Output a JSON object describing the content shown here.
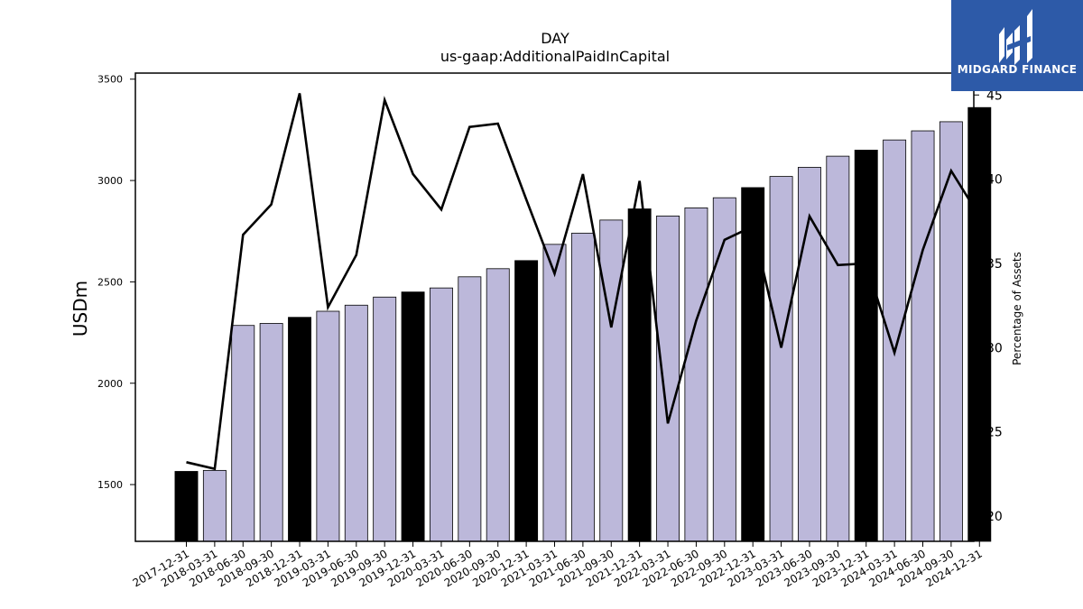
{
  "chart_data": {
    "type": "bar",
    "title": "DAY",
    "subtitle": "us-gaap:AdditionalPaidInCapital",
    "ylabel": "USDm",
    "y2label": "Percentage of Assets",
    "ylim": [
      1220,
      3530
    ],
    "y2lim": [
      18.5,
      46.3
    ],
    "yticks": [
      1500,
      2000,
      2500,
      3000,
      3500
    ],
    "y2ticks": [
      20,
      25,
      30,
      35,
      40,
      45
    ],
    "categories": [
      "2017-12-31",
      "2018-03-31",
      "2018-06-30",
      "2018-09-30",
      "2018-12-31",
      "2019-03-31",
      "2019-06-30",
      "2019-09-30",
      "2019-12-31",
      "2020-03-31",
      "2020-06-30",
      "2020-09-30",
      "2020-12-31",
      "2021-03-31",
      "2021-06-30",
      "2021-09-30",
      "2021-12-31",
      "2022-03-31",
      "2022-06-30",
      "2022-09-30",
      "2022-12-31",
      "2023-03-31",
      "2023-06-30",
      "2023-09-30",
      "2023-12-31",
      "2024-03-31",
      "2024-06-30",
      "2024-09-30",
      "2024-12-31"
    ],
    "series": [
      {
        "axis": "left",
        "kind": "bar",
        "values": [
          1565,
          1570,
          2285,
          2295,
          2325,
          2355,
          2385,
          2425,
          2450,
          2470,
          2525,
          2565,
          2605,
          2685,
          2740,
          2805,
          2860,
          2825,
          2865,
          2915,
          2965,
          3020,
          3065,
          3120,
          3150,
          3200,
          3245,
          3290,
          3360
        ],
        "colors": [
          "#000000",
          "#bcb8da",
          "#bcb8da",
          "#bcb8da",
          "#000000",
          "#bcb8da",
          "#bcb8da",
          "#bcb8da",
          "#000000",
          "#bcb8da",
          "#bcb8da",
          "#bcb8da",
          "#000000",
          "#bcb8da",
          "#bcb8da",
          "#bcb8da",
          "#000000",
          "#bcb8da",
          "#bcb8da",
          "#bcb8da",
          "#000000",
          "#bcb8da",
          "#bcb8da",
          "#bcb8da",
          "#000000",
          "#bcb8da",
          "#bcb8da",
          "#bcb8da",
          "#000000"
        ]
      },
      {
        "axis": "right",
        "kind": "line",
        "color": "#000000",
        "values": [
          23.2,
          22.8,
          36.7,
          38.5,
          45.1,
          32.4,
          35.5,
          44.7,
          40.3,
          38.2,
          43.1,
          43.3,
          38.8,
          34.4,
          40.3,
          31.2,
          39.9,
          25.5,
          31.6,
          36.4,
          37.2,
          30.0,
          37.8,
          34.9,
          35.0,
          29.7,
          35.8,
          40.5,
          37.8
        ]
      }
    ],
    "grid": false,
    "legend": "none"
  },
  "logo": {
    "text": "MIDGARD FINANCE",
    "background": "#2d5aa8"
  }
}
